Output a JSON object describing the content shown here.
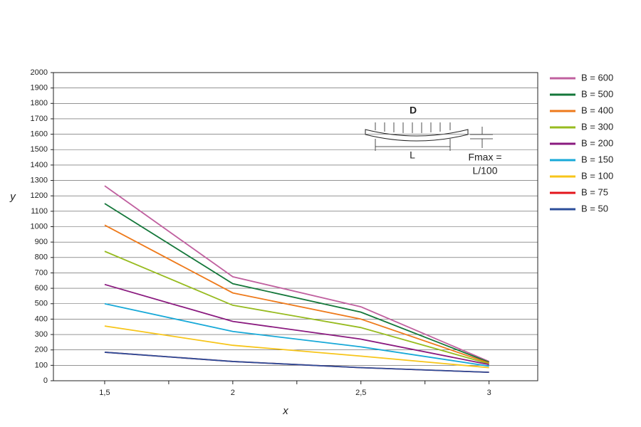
{
  "chart_data": {
    "type": "line",
    "x_label": "x",
    "y_label": "y",
    "x": [
      1.5,
      2,
      2.5,
      3
    ],
    "xlim": [
      1.3,
      3.19
    ],
    "xticks": [
      {
        "value": 1.5,
        "label": "1,5"
      },
      2,
      {
        "value": 2.5,
        "label": "2,5"
      },
      3
    ],
    "xminor_ticks": [
      1.75,
      2.25,
      2.75
    ],
    "ylim": [
      0,
      2000
    ],
    "yticks": [
      0,
      100,
      200,
      300,
      400,
      500,
      600,
      700,
      800,
      900,
      1000,
      1100,
      1200,
      1300,
      1400,
      1500,
      1600,
      1700,
      1800,
      1900,
      2000
    ],
    "grid": true,
    "legend": "right",
    "annotations": [
      "D",
      "L",
      "Fmax =",
      "L/100"
    ],
    "series": [
      {
        "name": "B = 600",
        "color": "#c0609f",
        "values": [
          1265,
          675,
          480,
          125
        ]
      },
      {
        "name": "B = 500",
        "color": "#14773a",
        "values": [
          1150,
          630,
          445,
          120
        ]
      },
      {
        "name": "B = 400",
        "color": "#ee7a1b",
        "values": [
          1010,
          570,
          400,
          115
        ]
      },
      {
        "name": "B = 300",
        "color": "#97bb1f",
        "values": [
          840,
          490,
          345,
          110
        ]
      },
      {
        "name": "B = 200",
        "color": "#8a1a7f",
        "values": [
          625,
          385,
          270,
          105
        ]
      },
      {
        "name": "B = 150",
        "color": "#18a9d8",
        "values": [
          500,
          320,
          220,
          95
        ]
      },
      {
        "name": "B = 100",
        "color": "#f7c51a",
        "values": [
          355,
          230,
          160,
          85
        ]
      },
      {
        "name": "B = 75",
        "color": "#e3141b",
        "values": [
          185,
          125,
          85,
          55
        ]
      },
      {
        "name": "B = 50",
        "color": "#2c4e9a",
        "values": [
          185,
          125,
          85,
          55
        ]
      }
    ]
  }
}
